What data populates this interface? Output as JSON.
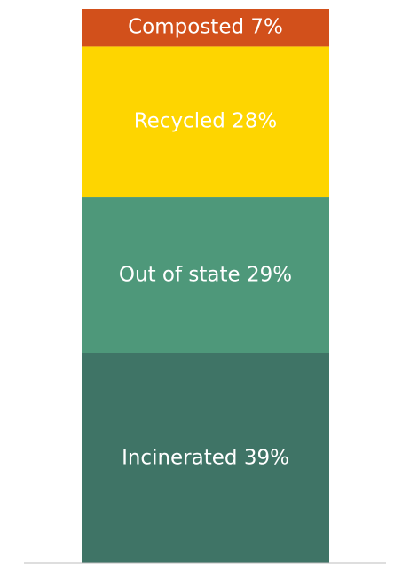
{
  "chart_data": {
    "type": "bar",
    "subtype": "stacked-100",
    "categories": [
      "Incinerated",
      "Out of state",
      "Recycled",
      "Composted"
    ],
    "values": [
      39,
      29,
      28,
      7
    ],
    "unit": "%",
    "labels": [
      "Incinerated 39%",
      "Out of state 29%",
      "Recycled 28%",
      "Composted 7%"
    ],
    "colors": [
      "#3f7466",
      "#4e987a",
      "#fed500",
      "#d2501b"
    ],
    "ylim": [
      0,
      103
    ],
    "title": "",
    "xlabel": "",
    "ylabel": "",
    "grid": false,
    "legend": "none"
  }
}
